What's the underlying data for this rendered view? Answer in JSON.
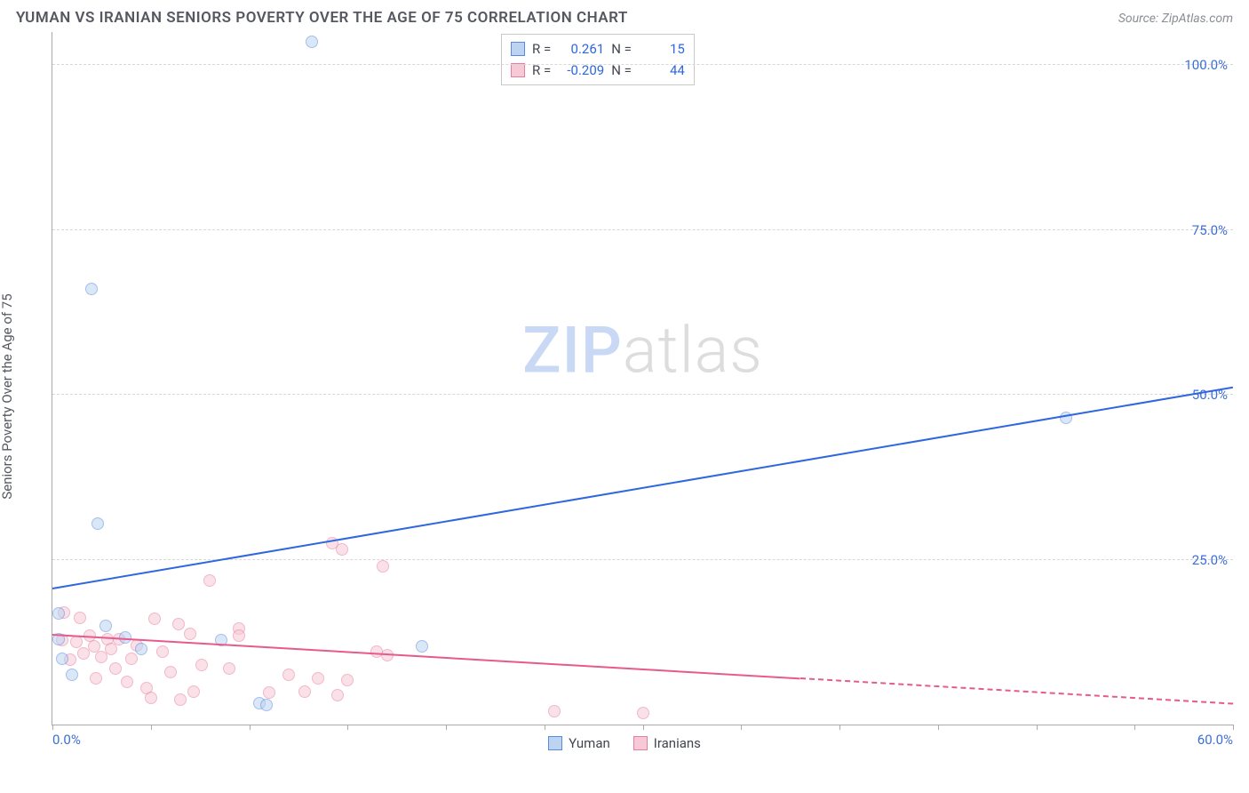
{
  "header": {
    "title": "YUMAN VS IRANIAN SENIORS POVERTY OVER THE AGE OF 75 CORRELATION CHART",
    "source": "Source: ZipAtlas.com"
  },
  "yaxis": {
    "label": "Seniors Poverty Over the Age of 75"
  },
  "watermark": {
    "zip": "ZIP",
    "atlas": "atlas"
  },
  "colors": {
    "series_a_fill": "#bcd4f2",
    "series_a_stroke": "#5a8adf",
    "series_b_fill": "#f7c9d6",
    "series_b_stroke": "#e77da1",
    "trend_a": "#2f67df",
    "trend_b": "#e75a8c",
    "grid": "#d7d7d7",
    "axis_text": "#3b6fd8"
  },
  "chart": {
    "type": "scatter",
    "xlim": [
      0,
      60
    ],
    "ylim": [
      0,
      105
    ],
    "xtick_step": 5,
    "yticks": [
      25,
      50,
      75,
      100
    ],
    "ytick_labels": [
      "25.0%",
      "50.0%",
      "75.0%",
      "100.0%"
    ],
    "xlabels": {
      "min": "0.0%",
      "max": "60.0%"
    },
    "point_radius": 7,
    "point_opacity": 0.55,
    "trend_width": 2
  },
  "stats": {
    "rows": [
      {
        "swatch": "a",
        "r_label": "R =",
        "r": "0.261",
        "n_label": "N =",
        "n": "15"
      },
      {
        "swatch": "b",
        "r_label": "R =",
        "r": "-0.209",
        "n_label": "N =",
        "n": "44"
      }
    ]
  },
  "legend": {
    "items": [
      {
        "swatch": "a",
        "label": "Yuman"
      },
      {
        "swatch": "b",
        "label": "Iranians"
      }
    ]
  },
  "series_a": {
    "name": "Yuman",
    "points": [
      [
        13.2,
        103.5
      ],
      [
        2.0,
        66.0
      ],
      [
        51.5,
        46.5
      ],
      [
        2.3,
        30.5
      ],
      [
        0.3,
        16.8
      ],
      [
        0.3,
        13.0
      ],
      [
        2.7,
        15.0
      ],
      [
        3.7,
        13.2
      ],
      [
        8.6,
        12.8
      ],
      [
        18.8,
        11.8
      ],
      [
        1.0,
        7.5
      ],
      [
        10.5,
        3.2
      ],
      [
        10.9,
        3.0
      ],
      [
        0.5,
        10.0
      ],
      [
        4.5,
        11.5
      ]
    ],
    "trend": {
      "x1": 0,
      "y1": 20.5,
      "x2": 60,
      "y2": 51.0,
      "solid_until_x": 60
    }
  },
  "series_b": {
    "name": "Iranians",
    "points": [
      [
        14.2,
        27.5
      ],
      [
        14.7,
        26.5
      ],
      [
        16.8,
        24.0
      ],
      [
        8.0,
        21.8
      ],
      [
        0.6,
        17.0
      ],
      [
        1.4,
        16.2
      ],
      [
        5.2,
        16.0
      ],
      [
        6.4,
        15.2
      ],
      [
        9.5,
        14.5
      ],
      [
        7.0,
        13.8
      ],
      [
        9.5,
        13.5
      ],
      [
        1.9,
        13.5
      ],
      [
        2.8,
        13.0
      ],
      [
        3.4,
        13.0
      ],
      [
        0.5,
        12.8
      ],
      [
        1.2,
        12.5
      ],
      [
        4.3,
        12.0
      ],
      [
        2.1,
        11.8
      ],
      [
        3.0,
        11.5
      ],
      [
        5.6,
        11.0
      ],
      [
        1.6,
        10.8
      ],
      [
        2.5,
        10.2
      ],
      [
        4.0,
        10.0
      ],
      [
        0.9,
        9.8
      ],
      [
        16.5,
        11.0
      ],
      [
        3.2,
        8.5
      ],
      [
        6.0,
        8.0
      ],
      [
        7.6,
        9.0
      ],
      [
        9.0,
        8.5
      ],
      [
        12.0,
        7.5
      ],
      [
        13.5,
        7.0
      ],
      [
        15.0,
        6.8
      ],
      [
        17.0,
        10.5
      ],
      [
        4.8,
        5.5
      ],
      [
        7.2,
        5.0
      ],
      [
        11.0,
        4.8
      ],
      [
        12.8,
        5.0
      ],
      [
        14.5,
        4.5
      ],
      [
        6.5,
        3.8
      ],
      [
        25.5,
        2.0
      ],
      [
        30.0,
        1.8
      ],
      [
        2.2,
        7.0
      ],
      [
        3.8,
        6.5
      ],
      [
        5.0,
        4.0
      ]
    ],
    "trend": {
      "x1": 0,
      "y1": 13.5,
      "x2": 60,
      "y2": 3.0,
      "solid_until_x": 38
    }
  }
}
